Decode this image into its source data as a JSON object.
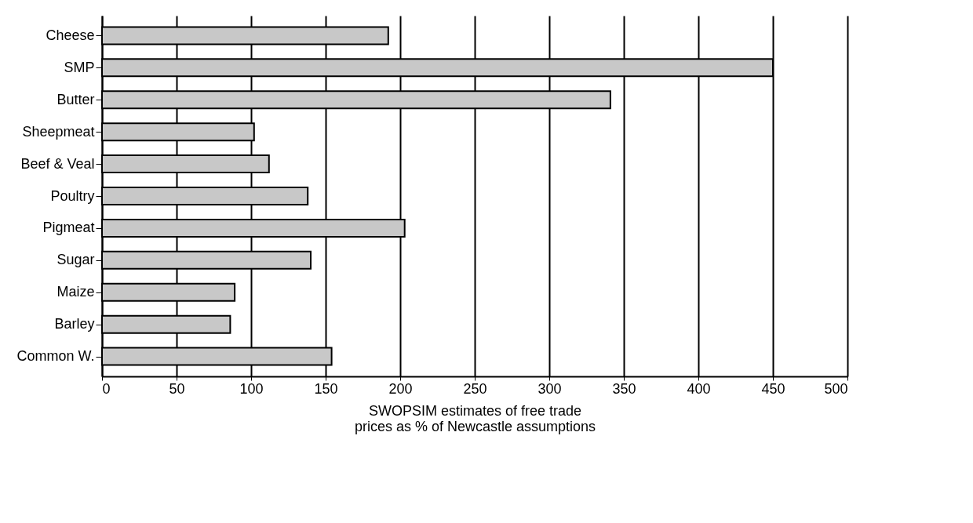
{
  "chart_data": {
    "type": "bar",
    "orientation": "horizontal",
    "categories": [
      "Cheese",
      "SMP",
      "Butter",
      "Sheepmeat",
      "Beef & Veal",
      "Poultry",
      "Pigmeat",
      "Sugar",
      "Maize",
      "Barley",
      "Common W."
    ],
    "values": [
      192,
      450,
      341,
      102,
      112,
      138,
      203,
      140,
      89,
      86,
      154
    ],
    "color": "#c8c8c8",
    "xlim": [
      0,
      500
    ],
    "xticks": [
      0,
      50,
      100,
      150,
      200,
      250,
      300,
      350,
      400,
      450,
      500
    ],
    "xlabel": "SWOPSIM estimates of free trade prices as % of Newcastle assumptions",
    "grid": "x"
  }
}
